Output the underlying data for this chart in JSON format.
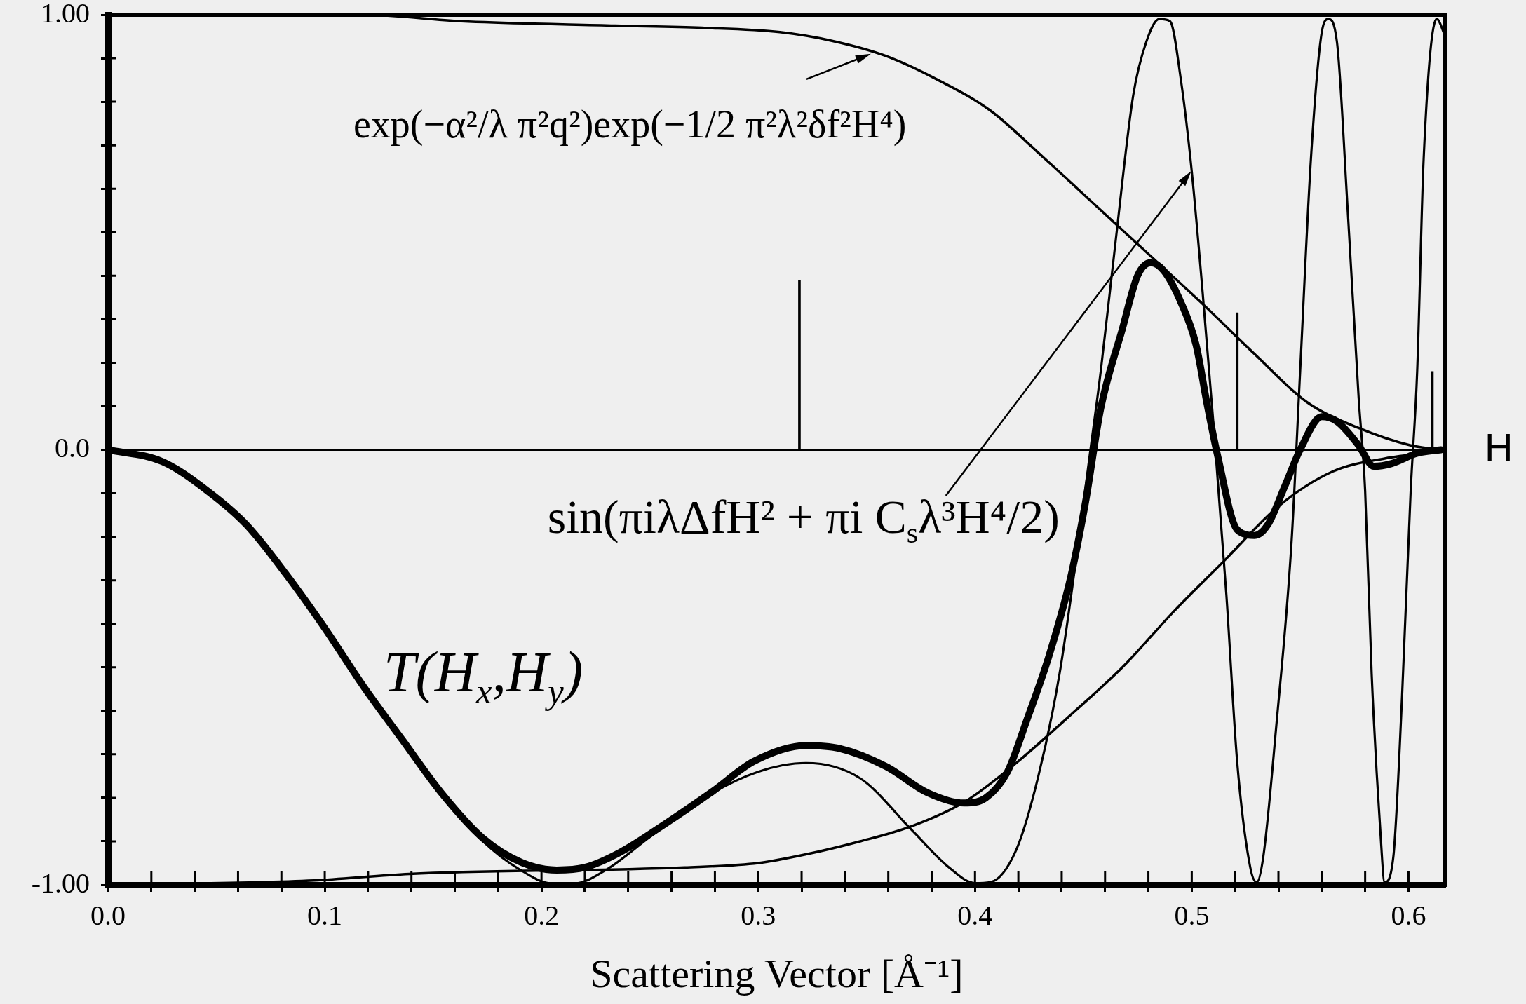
{
  "chart_data": {
    "type": "line",
    "xlabel": "Scattering Vector [Å⁻¹]",
    "marker": "none",
    "xlim": [
      0,
      0.617
    ],
    "xticks": [
      {
        "value": 0,
        "label": "0.0"
      },
      {
        "value": 0.02,
        "label": null
      },
      {
        "value": 0.04,
        "label": null
      },
      {
        "value": 0.06,
        "label": null
      },
      {
        "value": 0.08,
        "label": null
      },
      0.1,
      {
        "value": 0.12,
        "label": null
      },
      {
        "value": 0.14,
        "label": null
      },
      {
        "value": 0.16,
        "label": null
      },
      {
        "value": 0.18,
        "label": null
      },
      0.2,
      {
        "value": 0.22,
        "label": null
      },
      {
        "value": 0.24,
        "label": null
      },
      {
        "value": 0.26,
        "label": null
      },
      {
        "value": 0.28,
        "label": null
      },
      0.3,
      {
        "value": 0.32,
        "label": null
      },
      {
        "value": 0.34,
        "label": null
      },
      {
        "value": 0.36,
        "label": null
      },
      {
        "value": 0.38,
        "label": null
      },
      0.4,
      {
        "value": 0.42,
        "label": null
      },
      {
        "value": 0.44,
        "label": null
      },
      {
        "value": 0.46,
        "label": null
      },
      {
        "value": 0.48,
        "label": null
      },
      0.5,
      {
        "value": 0.52,
        "label": null
      },
      {
        "value": 0.54,
        "label": null
      },
      {
        "value": 0.56,
        "label": null
      },
      {
        "value": 0.58,
        "label": null
      },
      0.6
    ],
    "ylim": [
      -1,
      1
    ],
    "yticks": [
      {
        "value": -1,
        "label": "-1.00"
      },
      {
        "value": -0.9,
        "label": null
      },
      {
        "value": -0.8,
        "label": null
      },
      {
        "value": -0.7,
        "label": null
      },
      {
        "value": -0.6,
        "label": null
      },
      {
        "value": -0.5,
        "label": null
      },
      {
        "value": -0.4,
        "label": null
      },
      {
        "value": -0.3,
        "label": null
      },
      {
        "value": -0.2,
        "label": null
      },
      {
        "value": -0.1,
        "label": null
      },
      {
        "value": 0,
        "label": "0.0"
      },
      {
        "value": 0.1,
        "label": null
      },
      {
        "value": 0.2,
        "label": null
      },
      {
        "value": 0.3,
        "label": null
      },
      {
        "value": 0.4,
        "label": null
      },
      {
        "value": 0.5,
        "label": null
      },
      {
        "value": 0.6,
        "label": null
      },
      {
        "value": 0.7,
        "label": null
      },
      {
        "value": 0.8,
        "label": null
      },
      {
        "value": 0.9,
        "label": null
      },
      {
        "value": 1,
        "label": "1.00"
      }
    ],
    "series": [
      {
        "color": "#000000",
        "x": [
          0,
          0.118,
          0.163,
          0.234,
          0.274,
          0.31,
          0.334,
          0.359,
          0.383,
          0.407,
          0.432,
          0.456,
          0.48,
          0.504,
          0.529,
          0.553,
          0.577,
          0.601,
          0.615
        ],
        "values": [
          1,
          1,
          0.985,
          0.975,
          0.97,
          0.96,
          0.94,
          0.905,
          0.85,
          0.78,
          0.67,
          0.56,
          0.45,
          0.34,
          0.22,
          0.11,
          0.05,
          0.01,
          0
        ]
      },
      {
        "color": "#000000",
        "x": [
          0,
          0.095,
          0.139,
          0.266,
          0.3,
          0.322,
          0.347,
          0.371,
          0.395,
          0.419,
          0.444,
          0.468,
          0.492,
          0.516,
          0.54,
          0.565,
          0.589,
          0.614
        ],
        "values": [
          -1,
          -0.99,
          -0.975,
          -0.96,
          -0.95,
          -0.93,
          -0.9,
          -0.865,
          -0.81,
          -0.72,
          -0.61,
          -0.5,
          -0.37,
          -0.25,
          -0.13,
          -0.05,
          -0.02,
          -0.005
        ]
      },
      {
        "color": "#000000",
        "x": [
          0,
          0.025,
          0.046,
          0.064,
          0.082,
          0.1,
          0.118,
          0.136,
          0.154,
          0.173,
          0.19,
          0.205,
          0.215,
          0.23,
          0.25,
          0.275,
          0.3,
          0.322,
          0.347,
          0.371,
          0.388,
          0.4,
          0.407,
          0.419,
          0.429,
          0.439,
          0.446,
          0.453,
          0.458,
          0.465,
          0.473,
          0.479,
          0.485,
          0.49,
          0.495,
          0.5,
          0.505,
          0.51,
          0.516,
          0.521,
          0.527,
          0.53,
          0.533,
          0.539,
          0.546,
          0.55,
          0.555,
          0.56,
          0.563,
          0.567,
          0.572,
          0.577,
          0.58,
          0.583,
          0.587,
          0.589,
          0.593,
          0.597,
          0.601,
          0.604,
          0.607,
          0.613,
          0.617
        ],
        "values": [
          0,
          -0.027,
          -0.095,
          -0.173,
          -0.285,
          -0.41,
          -0.545,
          -0.668,
          -0.79,
          -0.9,
          -0.965,
          -0.997,
          -0.997,
          -0.965,
          -0.89,
          -0.8,
          -0.74,
          -0.72,
          -0.755,
          -0.875,
          -0.96,
          -0.996,
          -0.994,
          -0.92,
          -0.755,
          -0.515,
          -0.275,
          -0.01,
          0.18,
          0.485,
          0.815,
          0.937,
          0.99,
          0.985,
          0.85,
          0.64,
          0.363,
          0.06,
          -0.335,
          -0.72,
          -0.96,
          -0.994,
          -0.936,
          -0.635,
          -0.215,
          0.18,
          0.67,
          0.96,
          0.99,
          0.937,
          0.546,
          0.12,
          -0.095,
          -0.515,
          -0.876,
          -0.994,
          -0.936,
          -0.57,
          -0.095,
          0.18,
          0.67,
          0.99,
          0.95
        ]
      },
      {
        "color": "#000000",
        "x": [
          0,
          0.025,
          0.046,
          0.064,
          0.082,
          0.1,
          0.118,
          0.136,
          0.154,
          0.173,
          0.191,
          0.207,
          0.22,
          0.236,
          0.257,
          0.279,
          0.298,
          0.322,
          0.337,
          0.359,
          0.378,
          0.395,
          0.405,
          0.415,
          0.424,
          0.434,
          0.444,
          0.451,
          0.458,
          0.468,
          0.475,
          0.481,
          0.487,
          0.495,
          0.502,
          0.507,
          0.512,
          0.521,
          0.529,
          0.535,
          0.543,
          0.55,
          0.56,
          0.567,
          0.577,
          0.584,
          0.592,
          0.604,
          0.615
        ],
        "values": [
          0,
          -0.027,
          -0.095,
          -0.173,
          -0.285,
          -0.41,
          -0.545,
          -0.668,
          -0.79,
          -0.893,
          -0.949,
          -0.966,
          -0.96,
          -0.926,
          -0.86,
          -0.785,
          -0.716,
          -0.68,
          -0.686,
          -0.728,
          -0.788,
          -0.812,
          -0.8,
          -0.74,
          -0.62,
          -0.476,
          -0.296,
          -0.12,
          0.095,
          0.278,
          0.4,
          0.43,
          0.412,
          0.339,
          0.241,
          0.107,
          -0.015,
          -0.184,
          -0.197,
          -0.173,
          -0.083,
          0,
          0.076,
          0.065,
          0.01,
          -0.038,
          -0.032,
          -0.008,
          0
        ]
      },
      {
        "type": "bar",
        "color": "#000000",
        "x": [
          0.319,
          0.521,
          0.611
        ],
        "values": [
          0.39,
          0.315,
          0.18
        ]
      }
    ],
    "ref_lines": [
      {
        "axis": "y",
        "value": 0,
        "label": "H"
      }
    ],
    "annotations": [
      {
        "text": "exp(−α²/λ π²q²)exp(−1/2 π²λ²δf²H⁴)",
        "x": 0.352,
        "y": 0.91
      },
      {
        "text": "sin(πiλΔfH² + πi C$_{s}$λ³H⁴/2)",
        "x": 0.449,
        "y": -0.17
      },
      {
        "text": "T(H$_{x}$,H$_{y}$)",
        "x": 0.12,
        "y": -0.55
      }
    ]
  }
}
